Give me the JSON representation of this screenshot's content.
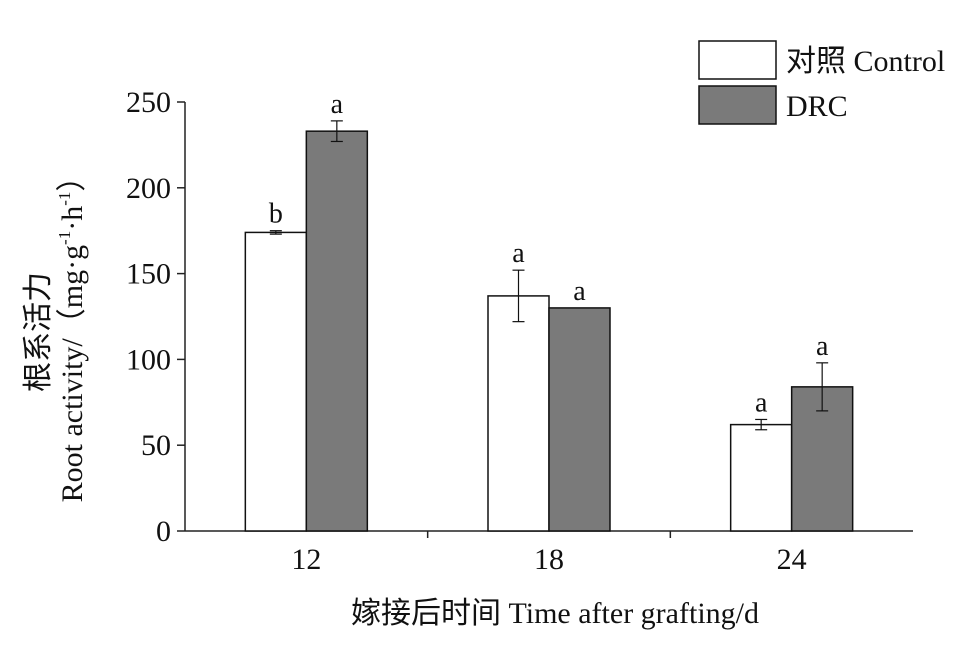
{
  "chart_data": {
    "type": "bar",
    "xlabel": "嫁接后时间 Time after grafting/d",
    "ylabel_cn": "根系活力",
    "ylabel_en": "Root activity/（mg·g",
    "ylabel_sup1": "-1",
    "ylabel_mid": "·h",
    "ylabel_sup2": "-1",
    "ylabel_end": "）",
    "ylim": [
      0,
      250
    ],
    "yticks": [
      0,
      50,
      100,
      150,
      200,
      250
    ],
    "categories": [
      "12",
      "18",
      "24"
    ],
    "series": [
      {
        "name": "对照 Control",
        "color": "#ffffff",
        "values": [
          174,
          137,
          62
        ],
        "errors": [
          1,
          15,
          3
        ],
        "labels": [
          "b",
          "a",
          "a"
        ]
      },
      {
        "name": "DRC",
        "color": "#7a7a7a",
        "values": [
          233,
          130,
          84
        ],
        "errors": [
          6,
          0,
          14
        ],
        "labels": [
          "a",
          "a",
          "a"
        ]
      }
    ],
    "legend_position": "top-right",
    "grid": false
  }
}
